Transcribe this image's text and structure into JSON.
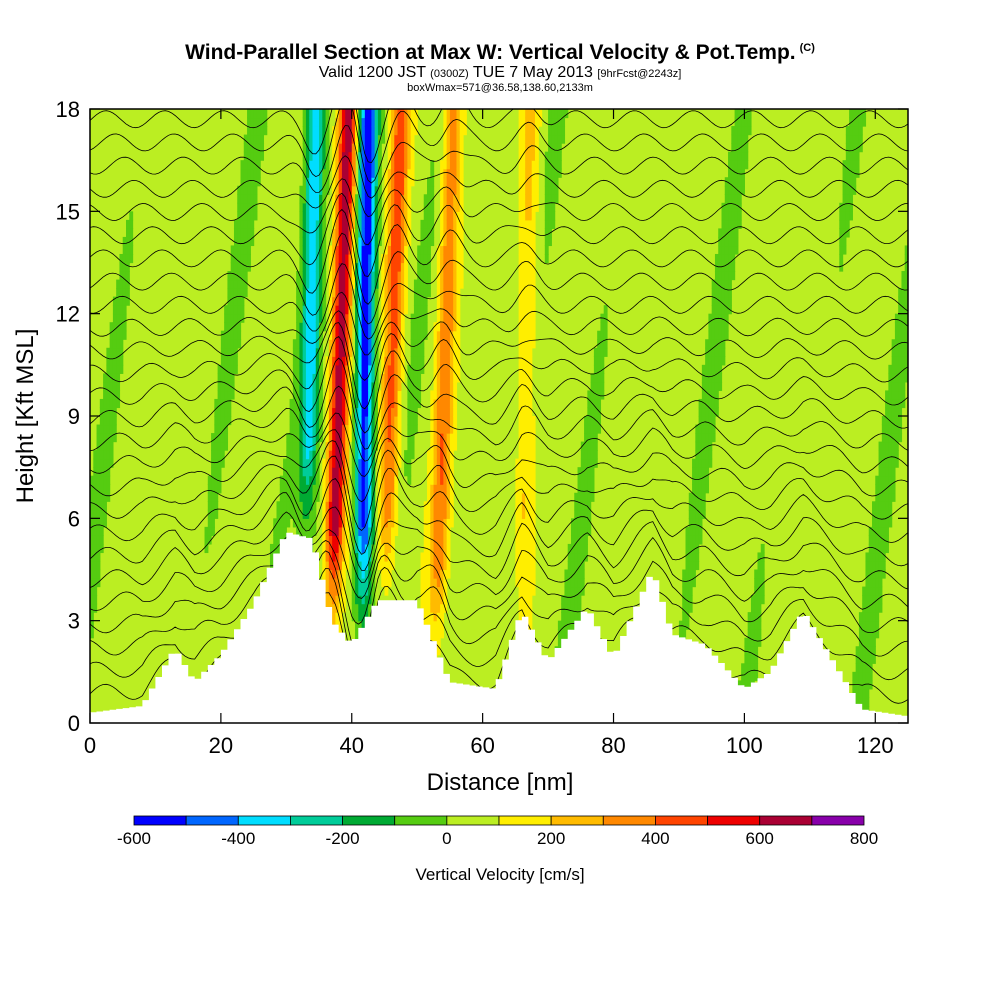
{
  "header": {
    "title": "Wind-Parallel Section at Max W: Vertical Velocity & Pot.Temp.",
    "title_mark": "(C)",
    "valid_prefix": "Valid 1200 JST",
    "valid_utc": "(0300Z)",
    "valid_date": "TUE 7 May 2013",
    "forecast": "[9hrFcst@2243z]",
    "box_info": "boxWmax=571@36.58,138.60,2133m"
  },
  "chart_data": {
    "type": "heatmap",
    "xlabel": "Distance [nm]",
    "ylabel": "Height [Kft MSL]",
    "xlim": [
      0,
      125
    ],
    "ylim": [
      0,
      18
    ],
    "x_ticks": [
      0,
      20,
      40,
      60,
      80,
      100,
      120
    ],
    "y_ticks": [
      0,
      3,
      6,
      9,
      12,
      15,
      18
    ],
    "colorbar": {
      "title": "Vertical Velocity [cm/s]",
      "bins": [
        -600,
        -500,
        -400,
        -300,
        -200,
        -100,
        0,
        100,
        200,
        300,
        400,
        500,
        600,
        700,
        800
      ],
      "tick_labels": [
        -600,
        -400,
        -200,
        0,
        200,
        400,
        600,
        800
      ],
      "colors": [
        "#0000ff",
        "#0066ff",
        "#00ddff",
        "#00cc99",
        "#00aa33",
        "#55cc11",
        "#bbee22",
        "#ffee00",
        "#ffbb00",
        "#ff8800",
        "#ff4400",
        "#ee0000",
        "#aa0033",
        "#8800aa"
      ]
    },
    "terrain_kft": [
      [
        0,
        0.3
      ],
      [
        8,
        0.5
      ],
      [
        13,
        2.2
      ],
      [
        16,
        1.2
      ],
      [
        20,
        2.0
      ],
      [
        25,
        3.5
      ],
      [
        30,
        5.6
      ],
      [
        34,
        5.4
      ],
      [
        37,
        3.0
      ],
      [
        40,
        2.3
      ],
      [
        44,
        3.6
      ],
      [
        50,
        3.6
      ],
      [
        55,
        1.2
      ],
      [
        62,
        1.0
      ],
      [
        66,
        3.3
      ],
      [
        70,
        1.8
      ],
      [
        76,
        3.4
      ],
      [
        80,
        1.9
      ],
      [
        86,
        4.5
      ],
      [
        89,
        2.6
      ],
      [
        94,
        2.3
      ],
      [
        100,
        1.0
      ],
      [
        104,
        1.5
      ],
      [
        109,
        3.3
      ],
      [
        113,
        2.0
      ],
      [
        118,
        0.4
      ],
      [
        125,
        0.2
      ]
    ],
    "updraft_cores": [
      {
        "x_bottom": 36.5,
        "x_top": 39.5,
        "w": 650
      },
      {
        "x_bottom": 44.5,
        "x_top": 47.5,
        "w": 380
      },
      {
        "x_bottom": 52.5,
        "x_top": 55.5,
        "w": 320
      },
      {
        "x_bottom": 65.5,
        "x_top": 67.5,
        "w": 180
      }
    ],
    "downdraft_cores": [
      {
        "x_bottom": 32.5,
        "x_top": 34.5,
        "w": -400
      },
      {
        "x_bottom": 41.5,
        "x_top": 42.5,
        "w": -600
      }
    ]
  }
}
